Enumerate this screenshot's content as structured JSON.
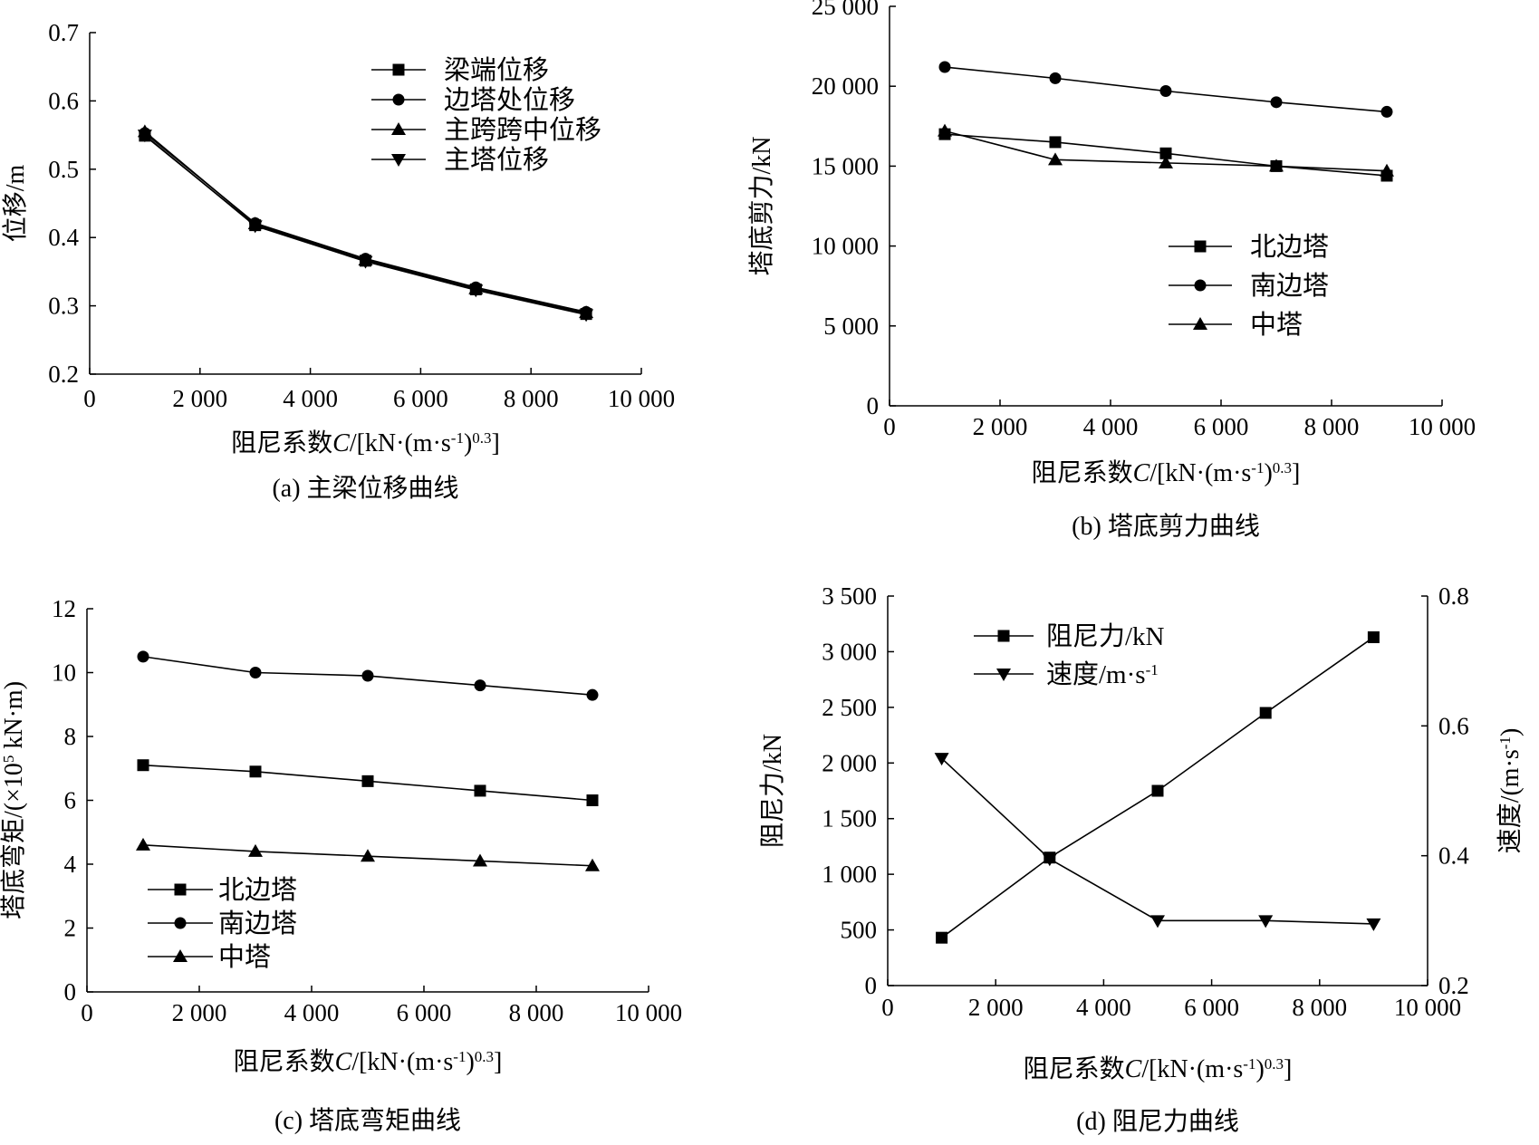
{
  "chart_data": [
    {
      "id": "a",
      "type": "line",
      "caption": "(a) 主梁位移曲线",
      "xlabel": "阻尼系数",
      "xlabel_var": "C",
      "xlabel_unit": "/[kN·(m·s",
      "xlabel_sup1": "-1",
      "xlabel_close": ")",
      "xlabel_sup2": "0.3",
      "xlabel_end": "]",
      "ylabel": "位移/m",
      "xlim": [
        0,
        10000
      ],
      "ylim": [
        0.2,
        0.7
      ],
      "xticks": [
        0,
        2000,
        4000,
        6000,
        8000,
        10000
      ],
      "xtick_labels": [
        "0",
        "2 000",
        "4 000",
        "6 000",
        "8 000",
        "10 000"
      ],
      "yticks": [
        0.2,
        0.3,
        0.4,
        0.5,
        0.6,
        0.7
      ],
      "ytick_labels": [
        "0.2",
        "0.3",
        "0.4",
        "0.5",
        "0.6",
        "0.7"
      ],
      "legend_position": "top-right",
      "x": [
        1000,
        3000,
        5000,
        7000,
        9000
      ],
      "series": [
        {
          "name": "梁端位移",
          "marker": "square",
          "values": [
            0.549,
            0.418,
            0.366,
            0.324,
            0.288
          ]
        },
        {
          "name": "边塔处位移",
          "marker": "circle",
          "values": [
            0.553,
            0.421,
            0.369,
            0.327,
            0.291
          ]
        },
        {
          "name": "主跨跨中位移",
          "marker": "triangle-up",
          "values": [
            0.555,
            0.42,
            0.367,
            0.325,
            0.29
          ]
        },
        {
          "name": "主塔位移",
          "marker": "triangle-down",
          "values": [
            0.55,
            0.417,
            0.365,
            0.323,
            0.287
          ]
        }
      ]
    },
    {
      "id": "b",
      "type": "line",
      "caption": "(b) 塔底剪力曲线",
      "xlabel": "阻尼系数",
      "xlabel_var": "C",
      "xlabel_unit": "/[kN·(m·s",
      "xlabel_sup1": "-1",
      "xlabel_close": ")",
      "xlabel_sup2": "0.3",
      "xlabel_end": "]",
      "ylabel": "塔底剪力/kN",
      "xlim": [
        0,
        10000
      ],
      "ylim": [
        0,
        25000
      ],
      "xticks": [
        0,
        2000,
        4000,
        6000,
        8000,
        10000
      ],
      "xtick_labels": [
        "0",
        "2 000",
        "4 000",
        "6 000",
        "8 000",
        "10 000"
      ],
      "yticks": [
        0,
        5000,
        10000,
        15000,
        20000,
        25000
      ],
      "ytick_labels": [
        "0",
        "5 000",
        "10 000",
        "15 000",
        "20 000",
        "25 000"
      ],
      "legend_position": "center-right",
      "x": [
        1000,
        3000,
        5000,
        7000,
        9000
      ],
      "series": [
        {
          "name": "北边塔",
          "marker": "square",
          "values": [
            17000,
            16500,
            15800,
            15000,
            14400
          ]
        },
        {
          "name": "南边塔",
          "marker": "circle",
          "values": [
            21200,
            20500,
            19700,
            19000,
            18400
          ]
        },
        {
          "name": "中塔",
          "marker": "triangle-up",
          "values": [
            17200,
            15400,
            15200,
            15000,
            14700
          ]
        }
      ]
    },
    {
      "id": "c",
      "type": "line",
      "caption": "(c) 塔底弯矩曲线",
      "xlabel": "阻尼系数",
      "xlabel_var": "C",
      "xlabel_unit": "/[kN·(m·s",
      "xlabel_sup1": "-1",
      "xlabel_close": ")",
      "xlabel_sup2": "0.3",
      "xlabel_end": "]",
      "ylabel_pre": "塔底弯矩/(×10",
      "ylabel_sup": "5",
      "ylabel_post": " kN·m)",
      "xlim": [
        0,
        10000
      ],
      "ylim": [
        0,
        12
      ],
      "xticks": [
        0,
        2000,
        4000,
        6000,
        8000,
        10000
      ],
      "xtick_labels": [
        "0",
        "2 000",
        "4 000",
        "6 000",
        "8 000",
        "10 000"
      ],
      "yticks": [
        0,
        2,
        4,
        6,
        8,
        10,
        12
      ],
      "ytick_labels": [
        "0",
        "2",
        "4",
        "6",
        "8",
        "10",
        "12"
      ],
      "legend_position": "bottom-left",
      "x": [
        1000,
        3000,
        5000,
        7000,
        9000
      ],
      "series": [
        {
          "name": "北边塔",
          "marker": "square",
          "values": [
            7.1,
            6.9,
            6.6,
            6.3,
            6.0
          ]
        },
        {
          "name": "南边塔",
          "marker": "circle",
          "values": [
            10.5,
            10.0,
            9.9,
            9.6,
            9.3
          ]
        },
        {
          "name": "中塔",
          "marker": "triangle-up",
          "values": [
            4.6,
            4.4,
            4.25,
            4.1,
            3.95
          ]
        }
      ]
    },
    {
      "id": "d",
      "type": "line",
      "caption": "(d) 阻尼力曲线",
      "xlabel": "阻尼系数",
      "xlabel_var": "C",
      "xlabel_unit": "/[kN·(m·s",
      "xlabel_sup1": "-1",
      "xlabel_close": ")",
      "xlabel_sup2": "0.3",
      "xlabel_end": "]",
      "ylabel": "阻尼力/kN",
      "ylabel_right_pre": "速度/(m·s",
      "ylabel_right_sup": "-1",
      "ylabel_right_post": ")",
      "xlim": [
        0,
        10000
      ],
      "ylim": [
        0,
        3500
      ],
      "ylim_right": [
        0.2,
        0.8
      ],
      "xticks": [
        0,
        2000,
        4000,
        6000,
        8000,
        10000
      ],
      "xtick_labels": [
        "0",
        "2 000",
        "4 000",
        "6 000",
        "8 000",
        "10 000"
      ],
      "yticks": [
        0,
        500,
        1000,
        1500,
        2000,
        2500,
        3000,
        3500
      ],
      "ytick_labels": [
        "0",
        "500",
        "1 000",
        "1 500",
        "2 000",
        "2 500",
        "3 000",
        "3 500"
      ],
      "yticks_right": [
        0.2,
        0.4,
        0.6,
        0.8
      ],
      "ytick_labels_right": [
        "0.2",
        "0.4",
        "0.6",
        "0.8"
      ],
      "legend_position": "top-left",
      "x": [
        1000,
        3000,
        5000,
        7000,
        9000
      ],
      "series": [
        {
          "name": "阻尼力/kN",
          "legend_sup": "",
          "marker": "square",
          "axis": "left",
          "values": [
            430,
            1150,
            1750,
            2450,
            3130
          ]
        },
        {
          "name": "速度/m·s",
          "legend_sup": "-1",
          "marker": "triangle-down",
          "axis": "right",
          "values": [
            0.55,
            0.395,
            0.3,
            0.3,
            0.295
          ]
        }
      ]
    }
  ]
}
